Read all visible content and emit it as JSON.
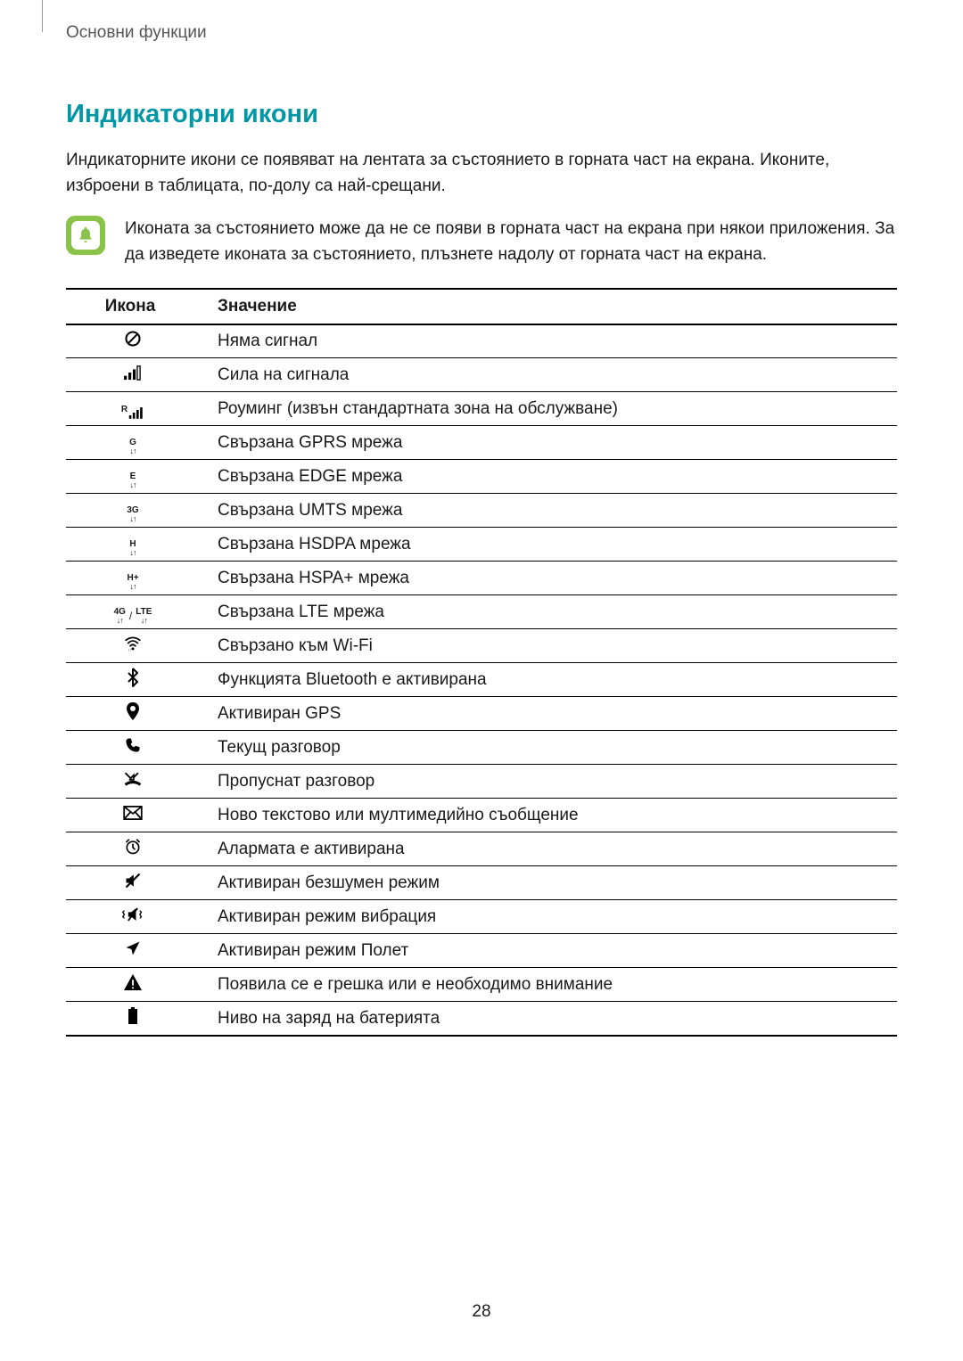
{
  "breadcrumb": "Основни функции",
  "section_title": "Индикаторни икони",
  "intro": "Индикаторните икони се появяват на лентата за състоянието в горната част на екрана. Иконите, изброени в таблицата, по-долу са най-срещани.",
  "note_text": "Иконата за състоянието може да не се появи в горната част на екрана при някои приложения. За да изведете иконата за състоянието, плъзнете надолу от горната част на екрана.",
  "note_icon_bg": "#8bc34a",
  "note_icon_inner_bg": "#ffffff",
  "note_bell_color": "#8bc34a",
  "table": {
    "header_icon": "Икона",
    "header_meaning": "Значение",
    "rows": [
      {
        "icon": "no-signal",
        "meaning": "Няма сигнал"
      },
      {
        "icon": "signal",
        "meaning": "Сила на сигнала"
      },
      {
        "icon": "roaming",
        "meaning": "Роуминг (извън стандартната зона на обслужване)"
      },
      {
        "icon": "gprs",
        "label": "G",
        "meaning": "Свързана GPRS мрежа"
      },
      {
        "icon": "edge",
        "label": "E",
        "meaning": "Свързана EDGE мрежа"
      },
      {
        "icon": "umts",
        "label": "3G",
        "meaning": "Свързана UMTS мрежа"
      },
      {
        "icon": "hsdpa",
        "label": "H",
        "meaning": "Свързана HSDPA мрежа"
      },
      {
        "icon": "hspa-plus",
        "label": "H+",
        "meaning": "Свързана HSPA+ мрежа"
      },
      {
        "icon": "lte",
        "label_a": "4G",
        "label_b": "LTE",
        "sep": "/",
        "meaning": "Свързана LTE мрежа"
      },
      {
        "icon": "wifi",
        "meaning": "Свързано към Wi-Fi"
      },
      {
        "icon": "bluetooth",
        "meaning": "Функцията Bluetooth е активирана"
      },
      {
        "icon": "gps",
        "meaning": "Активиран GPS"
      },
      {
        "icon": "call",
        "meaning": "Текущ разговор"
      },
      {
        "icon": "missed-call",
        "meaning": "Пропуснат разговор"
      },
      {
        "icon": "message",
        "meaning": "Ново текстово или мултимедийно съобщение"
      },
      {
        "icon": "alarm",
        "meaning": "Алармата е активирана"
      },
      {
        "icon": "mute",
        "meaning": "Активиран безшумен режим"
      },
      {
        "icon": "vibrate",
        "meaning": "Активиран режим вибрация"
      },
      {
        "icon": "airplane",
        "meaning": "Активиран режим Полет"
      },
      {
        "icon": "error",
        "meaning": "Появила се е грешка или е необходимо внимание"
      },
      {
        "icon": "battery",
        "meaning": "Ниво на заряд на батерията"
      }
    ]
  },
  "page_number": "28",
  "colors": {
    "title": "#0097a7",
    "text": "#1a1a1a",
    "border": "#000000"
  },
  "fontsize": {
    "breadcrumb": 19,
    "title": 29,
    "body": 19
  }
}
